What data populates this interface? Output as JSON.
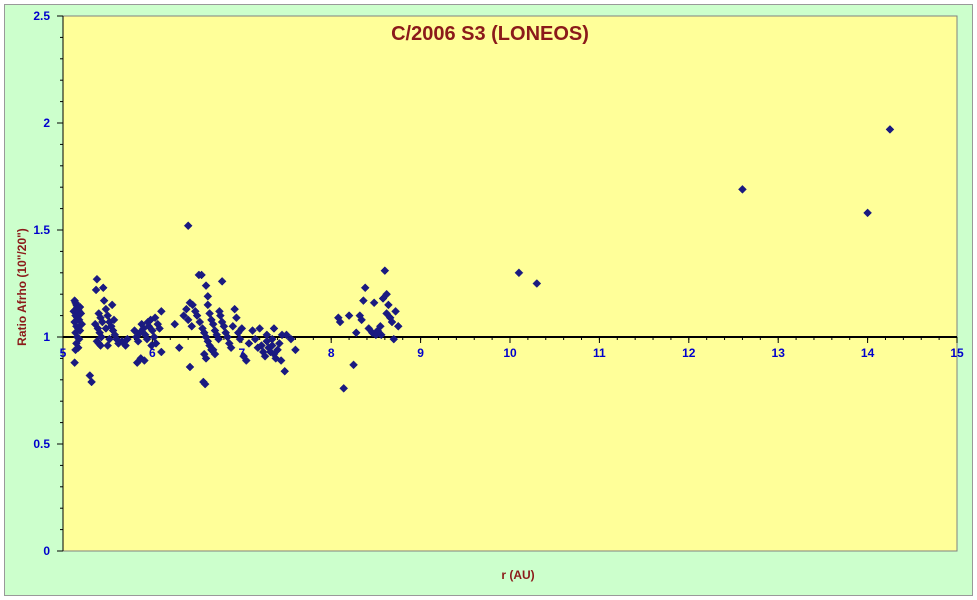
{
  "chart_data": {
    "type": "scatter",
    "title": "C/2006 S3 (LONEOS)",
    "xlabel": "r (AU)",
    "ylabel": "Ratio Afrho (10\"/20\")",
    "xlim": [
      5,
      15
    ],
    "ylim": [
      0,
      2.5
    ],
    "x_ticks": [
      5,
      6,
      7,
      8,
      9,
      10,
      11,
      12,
      13,
      14,
      15
    ],
    "y_ticks": [
      0,
      0.5,
      1,
      1.5,
      2,
      2.5
    ],
    "y_tick_labels": [
      "0",
      "0.5",
      "1",
      "1.5",
      "2",
      "2.5"
    ],
    "reference_line": 1,
    "grid": false,
    "colors": {
      "plot_bg": "#ffff99",
      "outer_bg": "#ccffcc",
      "marker": "#1a1a80",
      "title": "#8b1a1a",
      "ticks": "#0000cc"
    },
    "points": [
      [
        5.13,
        1.17
      ],
      [
        5.14,
        1.16
      ],
      [
        5.15,
        1.15
      ],
      [
        5.16,
        1.14
      ],
      [
        5.17,
        1.13
      ],
      [
        5.18,
        1.12
      ],
      [
        5.12,
        1.12
      ],
      [
        5.14,
        1.1
      ],
      [
        5.16,
        1.09
      ],
      [
        5.18,
        1.08
      ],
      [
        5.13,
        1.07
      ],
      [
        5.15,
        1.05
      ],
      [
        5.17,
        1.04
      ],
      [
        5.19,
        1.03
      ],
      [
        5.14,
        1.02
      ],
      [
        5.16,
        1.0
      ],
      [
        5.18,
        0.99
      ],
      [
        5.15,
        0.97
      ],
      [
        5.17,
        0.95
      ],
      [
        5.14,
        0.94
      ],
      [
        5.13,
        0.88
      ],
      [
        5.2,
        1.11
      ],
      [
        5.21,
        1.06
      ],
      [
        5.19,
        1.14
      ],
      [
        5.15,
        1.13
      ],
      [
        5.3,
        0.82
      ],
      [
        5.32,
        0.79
      ],
      [
        5.38,
        1.27
      ],
      [
        5.37,
        1.22
      ],
      [
        5.45,
        1.23
      ],
      [
        5.4,
        1.11
      ],
      [
        5.42,
        1.09
      ],
      [
        5.44,
        1.07
      ],
      [
        5.36,
        1.06
      ],
      [
        5.39,
        1.04
      ],
      [
        5.41,
        1.02
      ],
      [
        5.43,
        1.0
      ],
      [
        5.38,
        0.98
      ],
      [
        5.4,
        0.97
      ],
      [
        5.42,
        0.96
      ],
      [
        5.46,
        1.17
      ],
      [
        5.48,
        1.13
      ],
      [
        5.5,
        1.1
      ],
      [
        5.52,
        1.07
      ],
      [
        5.54,
        1.05
      ],
      [
        5.56,
        1.03
      ],
      [
        5.58,
        1.01
      ],
      [
        5.6,
        0.99
      ],
      [
        5.62,
        0.97
      ],
      [
        5.5,
        0.96
      ],
      [
        5.55,
        1.15
      ],
      [
        5.48,
        1.04
      ],
      [
        5.52,
        0.99
      ],
      [
        5.57,
        1.08
      ],
      [
        5.66,
        0.98
      ],
      [
        5.7,
        0.96
      ],
      [
        5.72,
        0.99
      ],
      [
        5.8,
        1.03
      ],
      [
        5.82,
        1.0
      ],
      [
        5.84,
        0.98
      ],
      [
        5.86,
        1.02
      ],
      [
        5.88,
        1.06
      ],
      [
        5.9,
        1.04
      ],
      [
        5.92,
        1.01
      ],
      [
        5.94,
        0.99
      ],
      [
        5.96,
        1.05
      ],
      [
        5.98,
        1.08
      ],
      [
        6.0,
        1.03
      ],
      [
        6.02,
        1.0
      ],
      [
        6.04,
        0.97
      ],
      [
        6.06,
        1.06
      ],
      [
        6.08,
        1.04
      ],
      [
        6.1,
        1.12
      ],
      [
        6.1,
        0.93
      ],
      [
        5.83,
        0.88
      ],
      [
        5.87,
        0.9
      ],
      [
        5.91,
        0.89
      ],
      [
        5.95,
        1.07
      ],
      [
        6.03,
        1.09
      ],
      [
        5.99,
        0.96
      ],
      [
        6.25,
        1.06
      ],
      [
        6.3,
        0.95
      ],
      [
        6.35,
        1.1
      ],
      [
        6.38,
        1.13
      ],
      [
        6.42,
        1.16
      ],
      [
        6.45,
        1.15
      ],
      [
        6.4,
        1.08
      ],
      [
        6.44,
        1.05
      ],
      [
        6.48,
        1.12
      ],
      [
        6.4,
        1.52
      ],
      [
        6.42,
        0.86
      ],
      [
        6.52,
        1.29
      ],
      [
        6.55,
        1.29
      ],
      [
        6.5,
        1.1
      ],
      [
        6.53,
        1.07
      ],
      [
        6.56,
        1.04
      ],
      [
        6.58,
        1.02
      ],
      [
        6.6,
        1.0
      ],
      [
        6.62,
        0.98
      ],
      [
        6.64,
        0.96
      ],
      [
        6.66,
        0.94
      ],
      [
        6.6,
        1.24
      ],
      [
        6.62,
        1.19
      ],
      [
        6.64,
        1.11
      ],
      [
        6.66,
        1.08
      ],
      [
        6.68,
        1.06
      ],
      [
        6.7,
        1.03
      ],
      [
        6.72,
        1.01
      ],
      [
        6.74,
        0.99
      ],
      [
        6.58,
        0.92
      ],
      [
        6.6,
        0.9
      ],
      [
        6.57,
        0.79
      ],
      [
        6.59,
        0.78
      ],
      [
        6.76,
        1.1
      ],
      [
        6.78,
        1.07
      ],
      [
        6.8,
        1.05
      ],
      [
        6.82,
        1.02
      ],
      [
        6.84,
        1.0
      ],
      [
        6.78,
        1.26
      ],
      [
        6.86,
        0.97
      ],
      [
        6.88,
        0.95
      ],
      [
        6.7,
        0.92
      ],
      [
        6.75,
        1.12
      ],
      [
        6.62,
        1.15
      ],
      [
        6.68,
        0.94
      ],
      [
        6.9,
        1.05
      ],
      [
        6.92,
        1.13
      ],
      [
        6.94,
        1.09
      ],
      [
        6.96,
        1.02
      ],
      [
        6.98,
        0.99
      ],
      [
        7.0,
        1.04
      ],
      [
        7.02,
        0.91
      ],
      [
        7.05,
        0.89
      ],
      [
        7.08,
        0.97
      ],
      [
        7.12,
        1.03
      ],
      [
        7.15,
        0.99
      ],
      [
        7.18,
        0.95
      ],
      [
        7.2,
        1.04
      ],
      [
        7.22,
        0.96
      ],
      [
        7.24,
        0.93
      ],
      [
        7.26,
        0.91
      ],
      [
        7.28,
        0.98
      ],
      [
        7.3,
        0.95
      ],
      [
        7.32,
        0.93
      ],
      [
        7.34,
        0.96
      ],
      [
        7.36,
        0.92
      ],
      [
        7.38,
        0.9
      ],
      [
        7.4,
        0.94
      ],
      [
        7.42,
        0.97
      ],
      [
        7.36,
        1.04
      ],
      [
        7.44,
        0.89
      ],
      [
        7.45,
        1.01
      ],
      [
        7.48,
        0.84
      ],
      [
        7.5,
        1.01
      ],
      [
        7.55,
        0.99
      ],
      [
        7.6,
        0.94
      ],
      [
        7.28,
        1.01
      ],
      [
        7.34,
        0.99
      ],
      [
        8.08,
        1.09
      ],
      [
        8.1,
        1.07
      ],
      [
        8.14,
        0.76
      ],
      [
        8.2,
        1.1
      ],
      [
        8.25,
        0.87
      ],
      [
        8.28,
        1.02
      ],
      [
        8.32,
        1.1
      ],
      [
        8.34,
        1.08
      ],
      [
        8.36,
        1.17
      ],
      [
        8.38,
        1.23
      ],
      [
        8.42,
        1.04
      ],
      [
        8.46,
        1.02
      ],
      [
        8.48,
        1.16
      ],
      [
        8.5,
        1.01
      ],
      [
        8.52,
        1.03
      ],
      [
        8.55,
        1.05
      ],
      [
        8.58,
        1.18
      ],
      [
        8.6,
        1.31
      ],
      [
        8.62,
        1.2
      ],
      [
        8.64,
        1.15
      ],
      [
        8.62,
        1.11
      ],
      [
        8.66,
        1.09
      ],
      [
        8.68,
        1.07
      ],
      [
        8.7,
        0.99
      ],
      [
        8.72,
        1.12
      ],
      [
        8.75,
        1.05
      ],
      [
        8.56,
        1.01
      ],
      [
        10.1,
        1.3
      ],
      [
        10.3,
        1.25
      ],
      [
        12.6,
        1.69
      ],
      [
        14.0,
        1.58
      ],
      [
        14.25,
        1.97
      ]
    ]
  }
}
